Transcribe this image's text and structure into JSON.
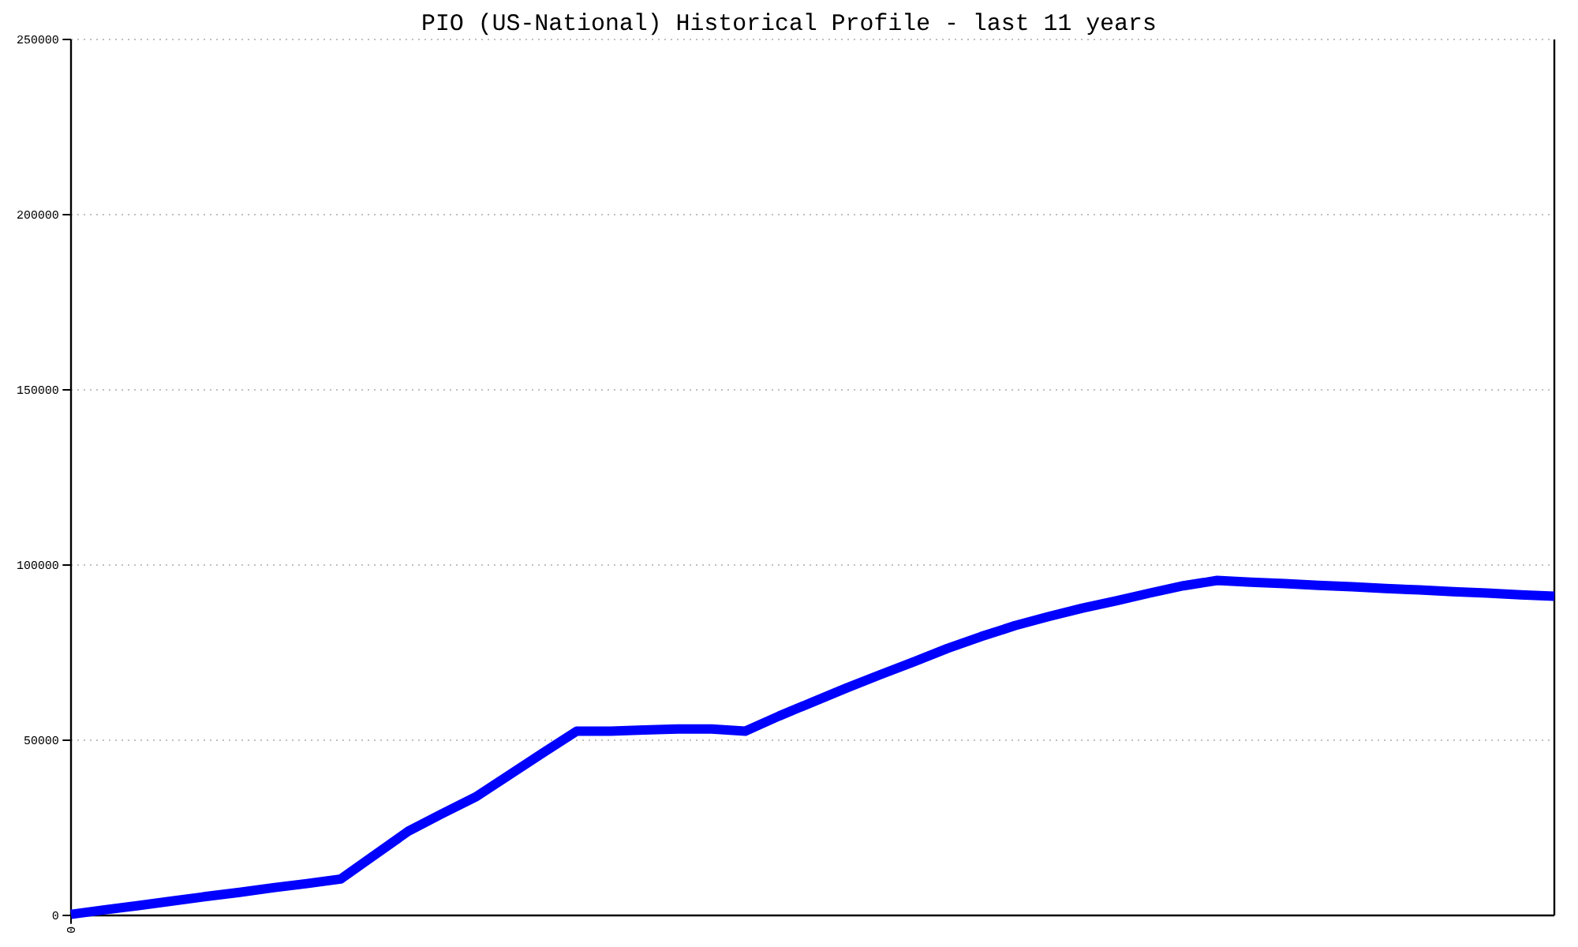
{
  "chart_data": {
    "type": "line",
    "title": "PIO (US-National) Historical Profile - last 11 years",
    "categories": [
      "0",
      null,
      null,
      null,
      null,
      null,
      null,
      null,
      null,
      null,
      null,
      null,
      null,
      null,
      null,
      null,
      null,
      null,
      null,
      null,
      null,
      null,
      null,
      null,
      null,
      null,
      null,
      null,
      null,
      null,
      null,
      null,
      null,
      null,
      null,
      null,
      null,
      null,
      null,
      null,
      null,
      null,
      null,
      null,
      null
    ],
    "series": [
      {
        "color": "#0000ff",
        "values": [
          300,
          1600,
          2800,
          4100,
          5400,
          6600,
          7900,
          9100,
          10400,
          17200,
          24000,
          29000,
          33800,
          40100,
          46400,
          52600,
          52600,
          52900,
          53200,
          53200,
          52600,
          56900,
          60900,
          64900,
          68700,
          72400,
          76200,
          79600,
          82700,
          85300,
          87700,
          89800,
          92000,
          94100,
          95600,
          95100,
          94700,
          94200,
          93800,
          93300,
          92900,
          92400,
          92000,
          91500,
          91100
        ]
      }
    ],
    "ylim": [
      0,
      250000
    ],
    "yticks": [
      0,
      50000,
      100000,
      150000,
      200000,
      250000
    ],
    "grid": "y",
    "line_style": "solid"
  }
}
